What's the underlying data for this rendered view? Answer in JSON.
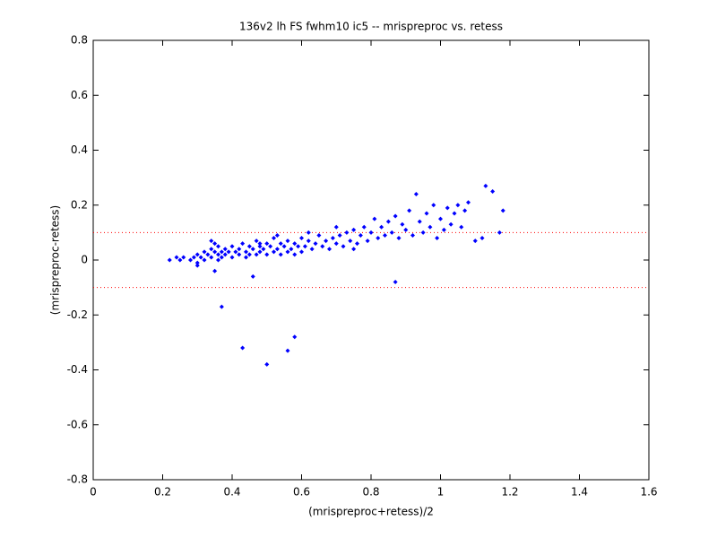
{
  "chart_data": {
    "type": "scatter",
    "title": "136v2 lh FS fwhm10 ic5 -- mrispreproc vs. retess",
    "x_label": "(mrispreproc+retess)/2",
    "y_label": "(mrispreproc-retess)",
    "color": "#0000ff",
    "xlim": [
      0,
      1.6
    ],
    "xticks": [
      0,
      0.2,
      0.4,
      0.6,
      0.8,
      1,
      1.2,
      1.4,
      1.6
    ],
    "ylim": [
      -0.8,
      0.8
    ],
    "yticks": [
      -0.8,
      -0.6,
      -0.4,
      -0.2,
      0,
      0.2,
      0.4,
      0.6,
      0.8
    ],
    "hlines": [
      0.1,
      -0.1
    ],
    "hline_color": "#ff0000",
    "x": [
      0.22,
      0.24,
      0.25,
      0.26,
      0.28,
      0.29,
      0.3,
      0.3,
      0.31,
      0.32,
      0.32,
      0.33,
      0.34,
      0.34,
      0.35,
      0.35,
      0.36,
      0.36,
      0.37,
      0.37,
      0.38,
      0.38,
      0.39,
      0.4,
      0.4,
      0.41,
      0.42,
      0.42,
      0.43,
      0.44,
      0.44,
      0.45,
      0.45,
      0.46,
      0.47,
      0.47,
      0.48,
      0.48,
      0.49,
      0.5,
      0.5,
      0.51,
      0.52,
      0.52,
      0.53,
      0.54,
      0.54,
      0.55,
      0.56,
      0.56,
      0.57,
      0.58,
      0.58,
      0.59,
      0.6,
      0.6,
      0.61,
      0.62,
      0.63,
      0.64,
      0.65,
      0.66,
      0.67,
      0.68,
      0.69,
      0.7,
      0.71,
      0.72,
      0.73,
      0.74,
      0.75,
      0.76,
      0.77,
      0.78,
      0.79,
      0.8,
      0.81,
      0.82,
      0.83,
      0.84,
      0.85,
      0.86,
      0.87,
      0.88,
      0.89,
      0.9,
      0.91,
      0.92,
      0.93,
      0.94,
      0.95,
      0.96,
      0.97,
      0.98,
      0.99,
      1.0,
      1.01,
      1.02,
      1.03,
      1.04,
      1.05,
      1.06,
      1.07,
      1.08,
      1.1,
      1.12,
      1.13,
      1.15,
      1.17,
      1.18,
      0.37,
      0.43,
      0.5,
      0.56,
      0.58,
      0.87,
      0.46,
      0.35,
      0.3,
      0.34,
      0.48,
      0.53,
      0.36,
      0.62,
      0.7,
      0.75
    ],
    "values": [
      0.0,
      0.01,
      0.0,
      0.01,
      0.0,
      0.01,
      0.02,
      -0.01,
      0.01,
      0.03,
      0.0,
      0.02,
      0.04,
      0.01,
      0.03,
      0.06,
      0.02,
      0.05,
      0.03,
      0.01,
      0.04,
      0.02,
      0.03,
      0.05,
      0.01,
      0.03,
      0.04,
      0.02,
      0.06,
      0.03,
      0.01,
      0.05,
      0.02,
      0.04,
      0.07,
      0.02,
      0.05,
      0.03,
      0.04,
      0.06,
      0.02,
      0.05,
      0.08,
      0.03,
      0.04,
      0.06,
      0.02,
      0.05,
      0.07,
      0.03,
      0.04,
      0.06,
      0.02,
      0.05,
      0.08,
      0.03,
      0.05,
      0.07,
      0.04,
      0.06,
      0.09,
      0.05,
      0.07,
      0.04,
      0.08,
      0.06,
      0.09,
      0.05,
      0.1,
      0.07,
      0.11,
      0.06,
      0.09,
      0.12,
      0.07,
      0.1,
      0.15,
      0.08,
      0.12,
      0.09,
      0.14,
      0.1,
      0.16,
      0.08,
      0.13,
      0.11,
      0.18,
      0.09,
      0.24,
      0.14,
      0.1,
      0.17,
      0.12,
      0.2,
      0.08,
      0.15,
      0.11,
      0.19,
      0.13,
      0.17,
      0.2,
      0.12,
      0.18,
      0.21,
      0.07,
      0.08,
      0.27,
      0.25,
      0.1,
      0.18,
      -0.17,
      -0.32,
      -0.38,
      -0.33,
      -0.28,
      -0.08,
      -0.06,
      -0.04,
      -0.02,
      0.07,
      0.06,
      0.09,
      0.0,
      0.1,
      0.12,
      0.04
    ]
  }
}
